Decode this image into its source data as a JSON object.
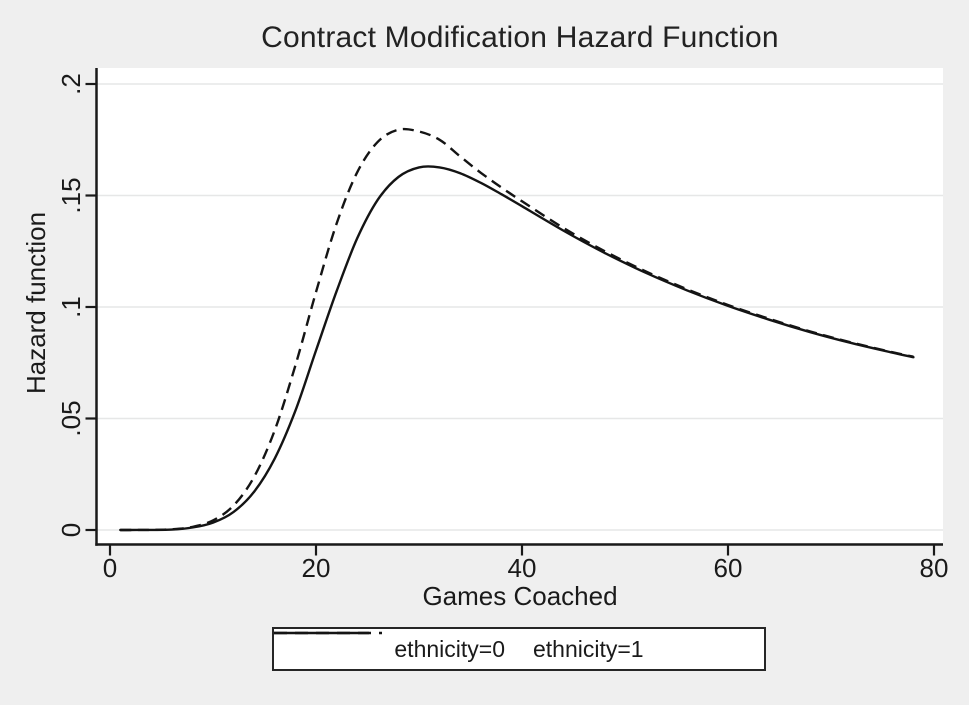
{
  "chart_data": {
    "type": "line",
    "title": "Contract Modification Hazard Function",
    "xlabel": "Games Coached",
    "ylabel": "Hazard function",
    "xlim": [
      0,
      80
    ],
    "ylim": [
      0,
      0.2
    ],
    "x_ticks": [
      0,
      20,
      40,
      60,
      80
    ],
    "x_tick_labels": [
      "0",
      "20",
      "40",
      "60",
      "80"
    ],
    "y_ticks": [
      0,
      0.05,
      0.1,
      0.15,
      0.2
    ],
    "y_tick_labels": [
      "0",
      ".05",
      ".1",
      ".15",
      ".2"
    ],
    "grid": "horizontal-only",
    "legend_position": "bottom-center",
    "colors": {
      "background": "#efefef",
      "plot_background": "#ffffff",
      "gridline": "#e6e7e7",
      "line": "#1a1a1a",
      "text": "#1a1a1a"
    },
    "x": [
      1,
      4,
      6,
      8,
      10,
      12,
      14,
      16,
      18,
      20,
      22,
      24,
      26,
      28,
      30,
      32,
      34,
      36,
      38,
      40,
      44,
      48,
      52,
      56,
      60,
      64,
      68,
      72,
      76,
      78
    ],
    "series": [
      {
        "name": "ethnicity=0",
        "line_style": "solid",
        "values": [
          0,
          3e-05,
          0.0002,
          0.0011,
          0.0033,
          0.0081,
          0.0172,
          0.0321,
          0.0535,
          0.0805,
          0.1071,
          0.1308,
          0.1481,
          0.1583,
          0.1626,
          0.1626,
          0.16,
          0.1557,
          0.1506,
          0.1452,
          0.1343,
          0.1243,
          0.1154,
          0.1075,
          0.1005,
          0.0943,
          0.0887,
          0.0838,
          0.0795,
          0.0775
        ]
      },
      {
        "name": "ethnicity=1",
        "line_style": "dashed",
        "values": [
          0,
          4e-05,
          0.0003,
          0.0014,
          0.0043,
          0.011,
          0.0239,
          0.0448,
          0.0738,
          0.1067,
          0.1374,
          0.1604,
          0.1741,
          0.1795,
          0.1787,
          0.175,
          0.1675,
          0.1602,
          0.1536,
          0.1474,
          0.1355,
          0.1251,
          0.116,
          0.108,
          0.1009,
          0.0947,
          0.089,
          0.0841,
          0.0797,
          0.0777
        ]
      }
    ]
  }
}
